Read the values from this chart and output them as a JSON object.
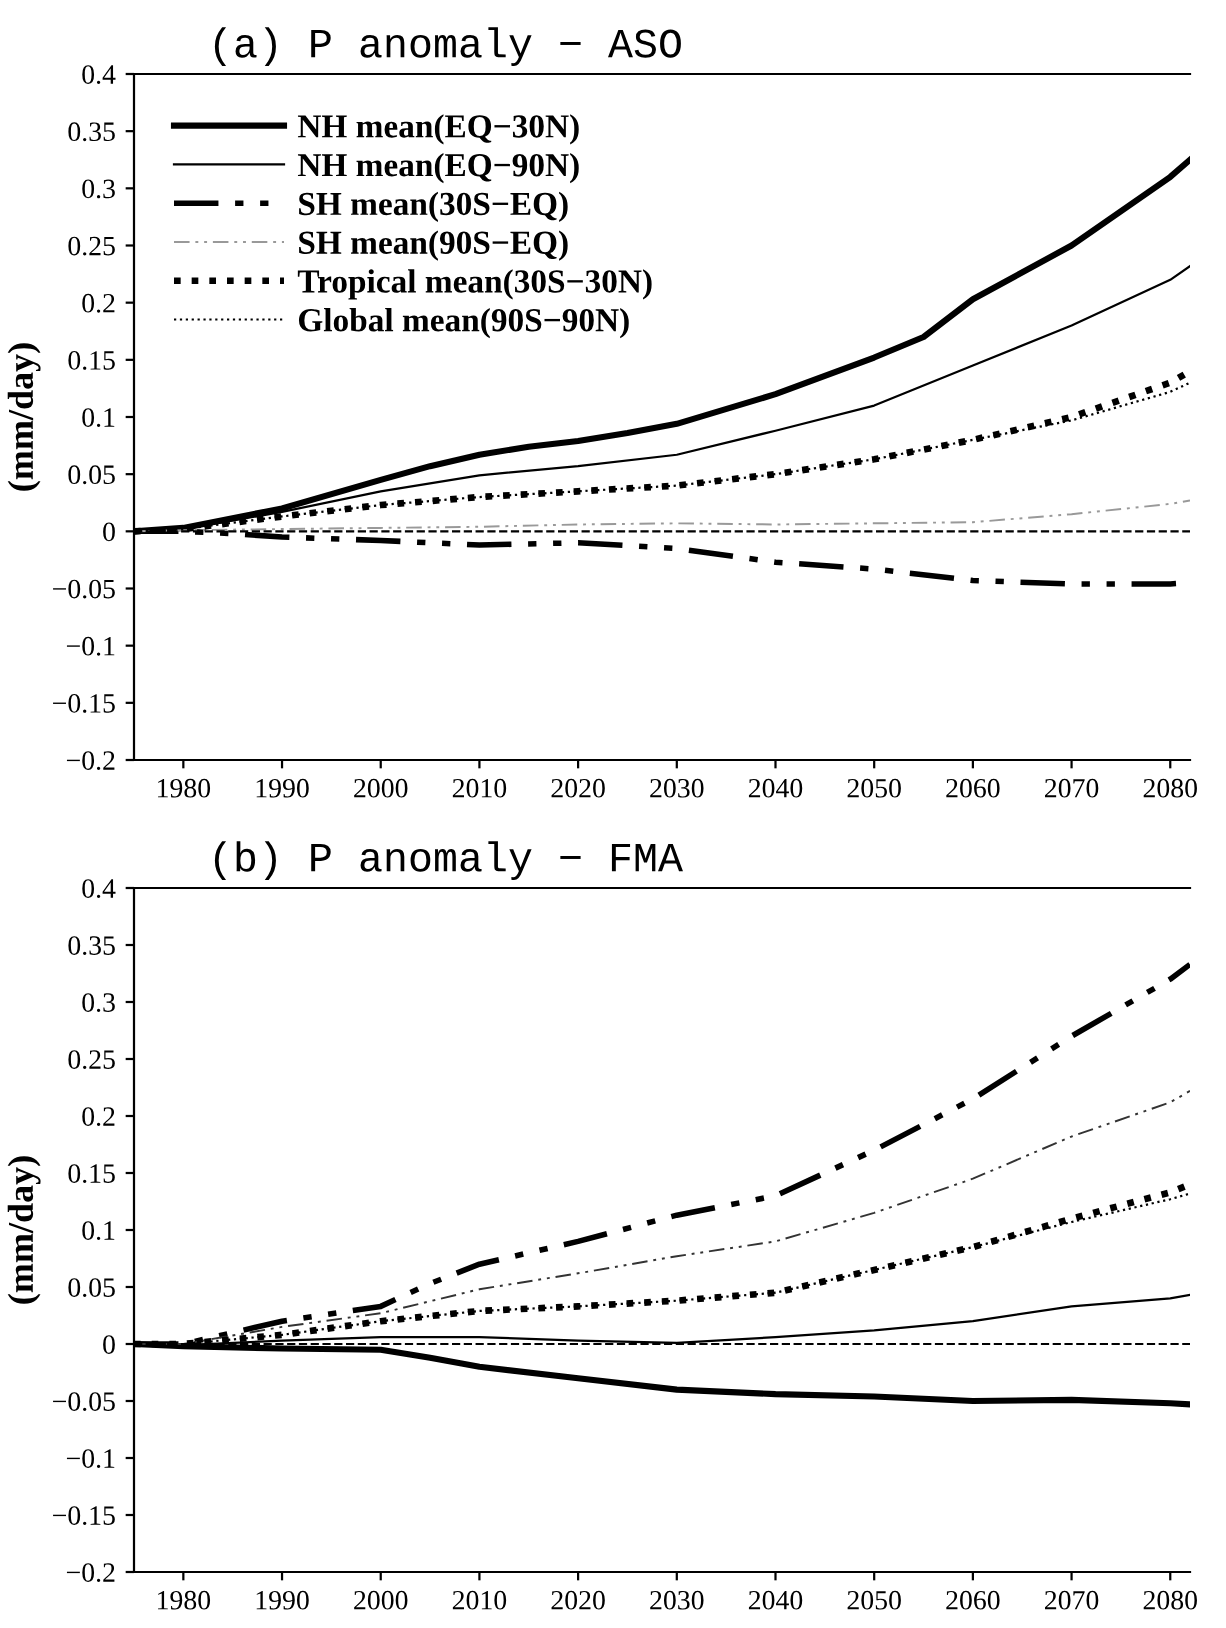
{
  "chart_data": [
    {
      "type": "line",
      "title": "(a) P anomaly − ASO",
      "ylabel": "(mm/day)",
      "legend": "top left",
      "grid": false,
      "xlim": [
        1975,
        2082
      ],
      "xticks": [
        1980,
        1990,
        2000,
        2010,
        2020,
        2030,
        2040,
        2050,
        2060,
        2070,
        2080
      ],
      "ylim": [
        -0.2,
        0.4
      ],
      "yticks": [
        {
          "value": -0.2,
          "label": "−0.2"
        },
        {
          "value": -0.15,
          "label": "−0.15"
        },
        {
          "value": -0.1,
          "label": "−0.1"
        },
        {
          "value": -0.05,
          "label": "−0.05"
        },
        0,
        0.05,
        0.1,
        0.15,
        0.2,
        0.25,
        0.3,
        0.35,
        0.4
      ],
      "ref_lines": [
        {
          "axis": "y",
          "value": 0,
          "color": "#000000",
          "line_style": "dashed"
        }
      ],
      "series": [
        {
          "name": "NH mean(EQ−30N)",
          "color": "#000000",
          "line_style": "solid",
          "x": [
            1975,
            1980,
            1990,
            2000,
            2005,
            2010,
            2015,
            2020,
            2025,
            2030,
            2040,
            2050,
            2055,
            2060,
            2070,
            2080,
            2082
          ],
          "values": [
            0,
            0.003,
            0.02,
            0.045,
            0.057,
            0.067,
            0.074,
            0.079,
            0.086,
            0.094,
            0.12,
            0.152,
            0.17,
            0.203,
            0.25,
            0.31,
            0.325
          ]
        },
        {
          "name": "NH mean(EQ−90N)",
          "color": "#000000",
          "line_style": "solid",
          "x": [
            1975,
            1980,
            1990,
            2000,
            2010,
            2020,
            2030,
            2040,
            2050,
            2060,
            2070,
            2080,
            2082
          ],
          "values": [
            0,
            0.002,
            0.017,
            0.035,
            0.049,
            0.057,
            0.067,
            0.088,
            0.11,
            0.145,
            0.18,
            0.22,
            0.232
          ]
        },
        {
          "name": "SH mean(30S−EQ)",
          "color": "#000000",
          "line_style": "dashdot",
          "x": [
            1975,
            1980,
            1985,
            1990,
            2000,
            2010,
            2020,
            2030,
            2040,
            2050,
            2060,
            2070,
            2080,
            2082
          ],
          "values": [
            0,
            0,
            -0.002,
            -0.005,
            -0.008,
            -0.012,
            -0.01,
            -0.015,
            -0.027,
            -0.033,
            -0.043,
            -0.046,
            -0.046,
            -0.045
          ]
        },
        {
          "name": "SH mean(90S−EQ)",
          "color": "#999999",
          "line_style": "dashdot",
          "x": [
            1975,
            1980,
            1990,
            2000,
            2010,
            2020,
            2030,
            2040,
            2050,
            2060,
            2070,
            2080,
            2082
          ],
          "values": [
            0,
            0.001,
            0.002,
            0.003,
            0.004,
            0.006,
            0.007,
            0.006,
            0.007,
            0.008,
            0.015,
            0.024,
            0.027
          ]
        },
        {
          "name": "Tropical mean(30S−30N)",
          "color": "#000000",
          "line_style": "dotted",
          "x": [
            1975,
            1980,
            1990,
            2000,
            2010,
            2020,
            2030,
            2040,
            2050,
            2060,
            2070,
            2080,
            2082
          ],
          "values": [
            0,
            0.002,
            0.013,
            0.023,
            0.03,
            0.035,
            0.04,
            0.05,
            0.063,
            0.08,
            0.1,
            0.13,
            0.14
          ]
        },
        {
          "name": "Global mean(90S−90N)",
          "color": "#000000",
          "line_style": "dotted",
          "x": [
            1975,
            1980,
            1990,
            2000,
            2010,
            2020,
            2030,
            2040,
            2050,
            2060,
            2070,
            2080,
            2082
          ],
          "values": [
            0,
            0.002,
            0.013,
            0.023,
            0.03,
            0.035,
            0.04,
            0.05,
            0.063,
            0.08,
            0.097,
            0.122,
            0.13
          ]
        }
      ]
    },
    {
      "type": "line",
      "title": "(b) P anomaly − FMA",
      "ylabel": "(mm/day)",
      "grid": false,
      "xlim": [
        1975,
        2082
      ],
      "xticks": [
        1980,
        1990,
        2000,
        2010,
        2020,
        2030,
        2040,
        2050,
        2060,
        2070,
        2080
      ],
      "ylim": [
        -0.2,
        0.4
      ],
      "yticks": [
        {
          "value": -0.2,
          "label": "−0.2"
        },
        {
          "value": -0.15,
          "label": "−0.15"
        },
        {
          "value": -0.1,
          "label": "−0.1"
        },
        {
          "value": -0.05,
          "label": "−0.05"
        },
        0,
        0.05,
        0.1,
        0.15,
        0.2,
        0.25,
        0.3,
        0.35,
        0.4
      ],
      "ref_lines": [
        {
          "axis": "y",
          "value": 0,
          "color": "#000000",
          "line_style": "dashed"
        }
      ],
      "series": [
        {
          "color": "#000000",
          "line_style": "solid",
          "x": [
            1975,
            1980,
            1990,
            2000,
            2005,
            2010,
            2020,
            2030,
            2040,
            2050,
            2060,
            2070,
            2080,
            2082
          ],
          "values": [
            0,
            -0.002,
            -0.004,
            -0.005,
            -0.012,
            -0.02,
            -0.03,
            -0.04,
            -0.044,
            -0.046,
            -0.05,
            -0.049,
            -0.052,
            -0.053
          ]
        },
        {
          "color": "#000000",
          "line_style": "solid",
          "x": [
            1975,
            1980,
            1990,
            2000,
            2010,
            2020,
            2030,
            2040,
            2050,
            2060,
            2070,
            2080,
            2082
          ],
          "values": [
            0,
            -0.001,
            0.003,
            0.006,
            0.006,
            0.003,
            0.001,
            0.006,
            0.012,
            0.02,
            0.033,
            0.04,
            0.043
          ]
        },
        {
          "color": "#000000",
          "line_style": "dashdot",
          "x": [
            1975,
            1980,
            1985,
            1990,
            2000,
            2005,
            2010,
            2020,
            2030,
            2040,
            2050,
            2060,
            2070,
            2080,
            2082
          ],
          "values": [
            0,
            0,
            0.01,
            0.02,
            0.033,
            0.053,
            0.07,
            0.09,
            0.113,
            0.13,
            0.17,
            0.215,
            0.27,
            0.32,
            0.333
          ]
        },
        {
          "color": "#333333",
          "line_style": "dashdot",
          "x": [
            1975,
            1980,
            1990,
            2000,
            2010,
            2020,
            2030,
            2040,
            2050,
            2060,
            2070,
            2080,
            2082
          ],
          "values": [
            0,
            0,
            0.015,
            0.027,
            0.048,
            0.062,
            0.077,
            0.09,
            0.115,
            0.145,
            0.182,
            0.212,
            0.222
          ]
        },
        {
          "color": "#000000",
          "line_style": "dotted",
          "x": [
            1975,
            1980,
            1990,
            2000,
            2010,
            2020,
            2030,
            2040,
            2050,
            2060,
            2070,
            2080,
            2082
          ],
          "values": [
            0,
            0,
            0.008,
            0.02,
            0.029,
            0.033,
            0.038,
            0.045,
            0.065,
            0.085,
            0.11,
            0.133,
            0.14
          ]
        },
        {
          "color": "#000000",
          "line_style": "dotted",
          "x": [
            1975,
            1980,
            1990,
            2000,
            2010,
            2020,
            2030,
            2040,
            2050,
            2060,
            2070,
            2080,
            2082
          ],
          "values": [
            0,
            0,
            0.008,
            0.02,
            0.029,
            0.033,
            0.038,
            0.045,
            0.065,
            0.085,
            0.107,
            0.127,
            0.132
          ]
        }
      ]
    }
  ]
}
